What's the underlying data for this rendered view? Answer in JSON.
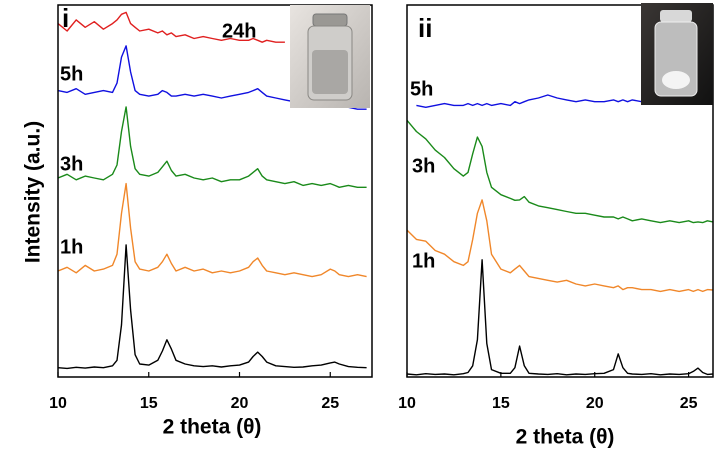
{
  "chart_data": [
    {
      "type": "line",
      "panel_label": "i",
      "xlabel": "2 theta (θ)",
      "ylabel": "Intensity (a.u.)",
      "x": [
        10,
        10.5,
        11,
        11.5,
        12,
        12.5,
        13,
        13.25,
        13.5,
        13.75,
        14,
        14.25,
        14.5,
        15,
        15.5,
        15.75,
        16,
        16.25,
        16.5,
        17,
        17.5,
        18,
        18.5,
        19,
        19.5,
        20,
        20.5,
        20.75,
        21,
        21.25,
        21.5,
        22,
        22.5,
        23,
        23.5,
        24,
        24.5,
        25,
        25.25,
        25.5,
        26,
        26.5,
        27
      ],
      "xlim": [
        10,
        27.3
      ],
      "xticks": [
        10,
        15,
        20,
        25
      ],
      "ylim": [
        0,
        100
      ],
      "series": [
        {
          "color": "#000000",
          "values": [
            2.5,
            2.3,
            2.6,
            2.4,
            2.7,
            2.5,
            3,
            4.5,
            14,
            35.5,
            18,
            6,
            3.5,
            3.2,
            4.5,
            7,
            10,
            7.5,
            4.5,
            3.5,
            3,
            2.8,
            3,
            2.7,
            3,
            3.2,
            4,
            5.5,
            6.7,
            5.5,
            4,
            3,
            2.8,
            2.6,
            2.7,
            3,
            3.2,
            3.8,
            4,
            3.5,
            2.8,
            2.6,
            2.5
          ]
        },
        {
          "name": "1h",
          "color": "#f0872a",
          "values": [
            28.5,
            29.5,
            28,
            30,
            28.5,
            29,
            30,
            33,
            44,
            52,
            40,
            31,
            29,
            28.5,
            29.5,
            31,
            33,
            30.5,
            28.5,
            29.5,
            28.5,
            29,
            28,
            28.5,
            28,
            28.5,
            29.5,
            31,
            32,
            30,
            28.5,
            28,
            27.5,
            28,
            27.5,
            27,
            27.5,
            29,
            28.5,
            27.5,
            27,
            27.5,
            27
          ]
        },
        {
          "name": "3h",
          "color": "#1a8a1a",
          "values": [
            53.5,
            54.5,
            53,
            54,
            53.5,
            53,
            54.5,
            57,
            66,
            72.6,
            62,
            56,
            54.5,
            54,
            55,
            56.5,
            58,
            55.5,
            54,
            54.5,
            53.5,
            53,
            53.5,
            52.5,
            53,
            53,
            54,
            55,
            56,
            54,
            53,
            52.5,
            52,
            52.5,
            51.5,
            52,
            51.5,
            52,
            51.5,
            51,
            51.5,
            51,
            51
          ]
        },
        {
          "name": "5h",
          "color": "#1010e0",
          "values": [
            77,
            76.5,
            77.5,
            76,
            76.5,
            77,
            76.5,
            79,
            86,
            89,
            82,
            77,
            76,
            75.5,
            76,
            77,
            76.5,
            75.5,
            75.5,
            76,
            75.5,
            76,
            75.5,
            75,
            75.5,
            76,
            76.5,
            77,
            77.5,
            76.5,
            75.5,
            75,
            74.5,
            74,
            74,
            73.5,
            73,
            73.5,
            73,
            72.5,
            72.5,
            72,
            72
          ]
        },
        {
          "name": "24h",
          "color": "#e02020",
          "values": [
            95,
            93,
            96,
            94,
            95.5,
            93.5,
            95,
            96,
            97.5,
            98,
            95,
            94,
            93,
            93.5,
            92.5,
            93,
            92,
            92.5,
            91.5,
            92,
            91,
            91.5,
            91,
            90.5,
            91,
            90.5,
            90.5,
            91,
            90.5,
            90,
            90.5,
            90,
            90,
            null,
            null,
            null,
            null,
            null,
            null,
            null,
            null,
            null,
            null
          ]
        }
      ]
    },
    {
      "type": "line",
      "panel_label": "ii",
      "xlabel": "2 theta (θ)",
      "x": [
        10,
        10.5,
        11,
        11.5,
        12,
        12.5,
        13,
        13.25,
        13.5,
        13.75,
        14,
        14.25,
        14.5,
        15,
        15.5,
        15.75,
        16,
        16.25,
        16.5,
        17,
        17.5,
        18,
        18.5,
        19,
        19.5,
        20,
        20.5,
        21,
        21.25,
        21.5,
        21.75,
        22,
        22.5,
        23,
        23.5,
        24,
        24.5,
        25,
        25.25,
        25.5,
        25.75,
        26,
        26.3
      ],
      "xlim": [
        10,
        26.3
      ],
      "xticks": [
        10,
        15,
        20,
        25
      ],
      "ylim": [
        0,
        100
      ],
      "series": [
        {
          "color": "#000000",
          "values": [
            0.8,
            0.6,
            0.9,
            0.7,
            0.8,
            0.6,
            0.9,
            1.2,
            3,
            10,
            31.5,
            9,
            2,
            1,
            1,
            2.5,
            8.3,
            3,
            1,
            0.8,
            0.7,
            0.9,
            0.6,
            0.8,
            0.7,
            0.9,
            1,
            2,
            6.2,
            2.5,
            1,
            0.8,
            0.7,
            0.9,
            0.6,
            0.8,
            0.7,
            0.9,
            1.5,
            2.4,
            1.2,
            0.7,
            0.8
          ]
        },
        {
          "name": "1h",
          "color": "#f0872a",
          "values": [
            39.5,
            37,
            36.5,
            34,
            33,
            31,
            30,
            31,
            37,
            44,
            47.6,
            42,
            33,
            29,
            28,
            29,
            30,
            28.5,
            27,
            26.5,
            26,
            25.5,
            26,
            25,
            24.5,
            25,
            24.5,
            24,
            24.5,
            23.5,
            24,
            24,
            23.5,
            23.5,
            23,
            23.5,
            23,
            23.5,
            23,
            23.5,
            23,
            23.5,
            23.4
          ]
        },
        {
          "name": "3h",
          "color": "#1a8a1a",
          "values": [
            69,
            66,
            64,
            61,
            59,
            56,
            54,
            55,
            60,
            64.5,
            62,
            55,
            51,
            49,
            48,
            47.5,
            47.6,
            48.5,
            47,
            46,
            45.5,
            45,
            44.5,
            44,
            44,
            43.5,
            43,
            43,
            42.5,
            43,
            42.5,
            42,
            42.5,
            42,
            41.5,
            42,
            41.5,
            42,
            41.5,
            41.7,
            41.5,
            42,
            41.7
          ]
        },
        {
          "name": "5h",
          "color": "#1010e0",
          "values": [
            null,
            73,
            72.5,
            73,
            73.5,
            73,
            73,
            73.5,
            73,
            73.5,
            73,
            73.5,
            73,
            73.5,
            73,
            74,
            73.5,
            74,
            74.5,
            75,
            75.8,
            75,
            74.5,
            74,
            74.5,
            74,
            74,
            74.5,
            74,
            74.5,
            74,
            74.5,
            74,
            null,
            null,
            null,
            null,
            null,
            null,
            null,
            null,
            null,
            null
          ]
        }
      ]
    }
  ]
}
